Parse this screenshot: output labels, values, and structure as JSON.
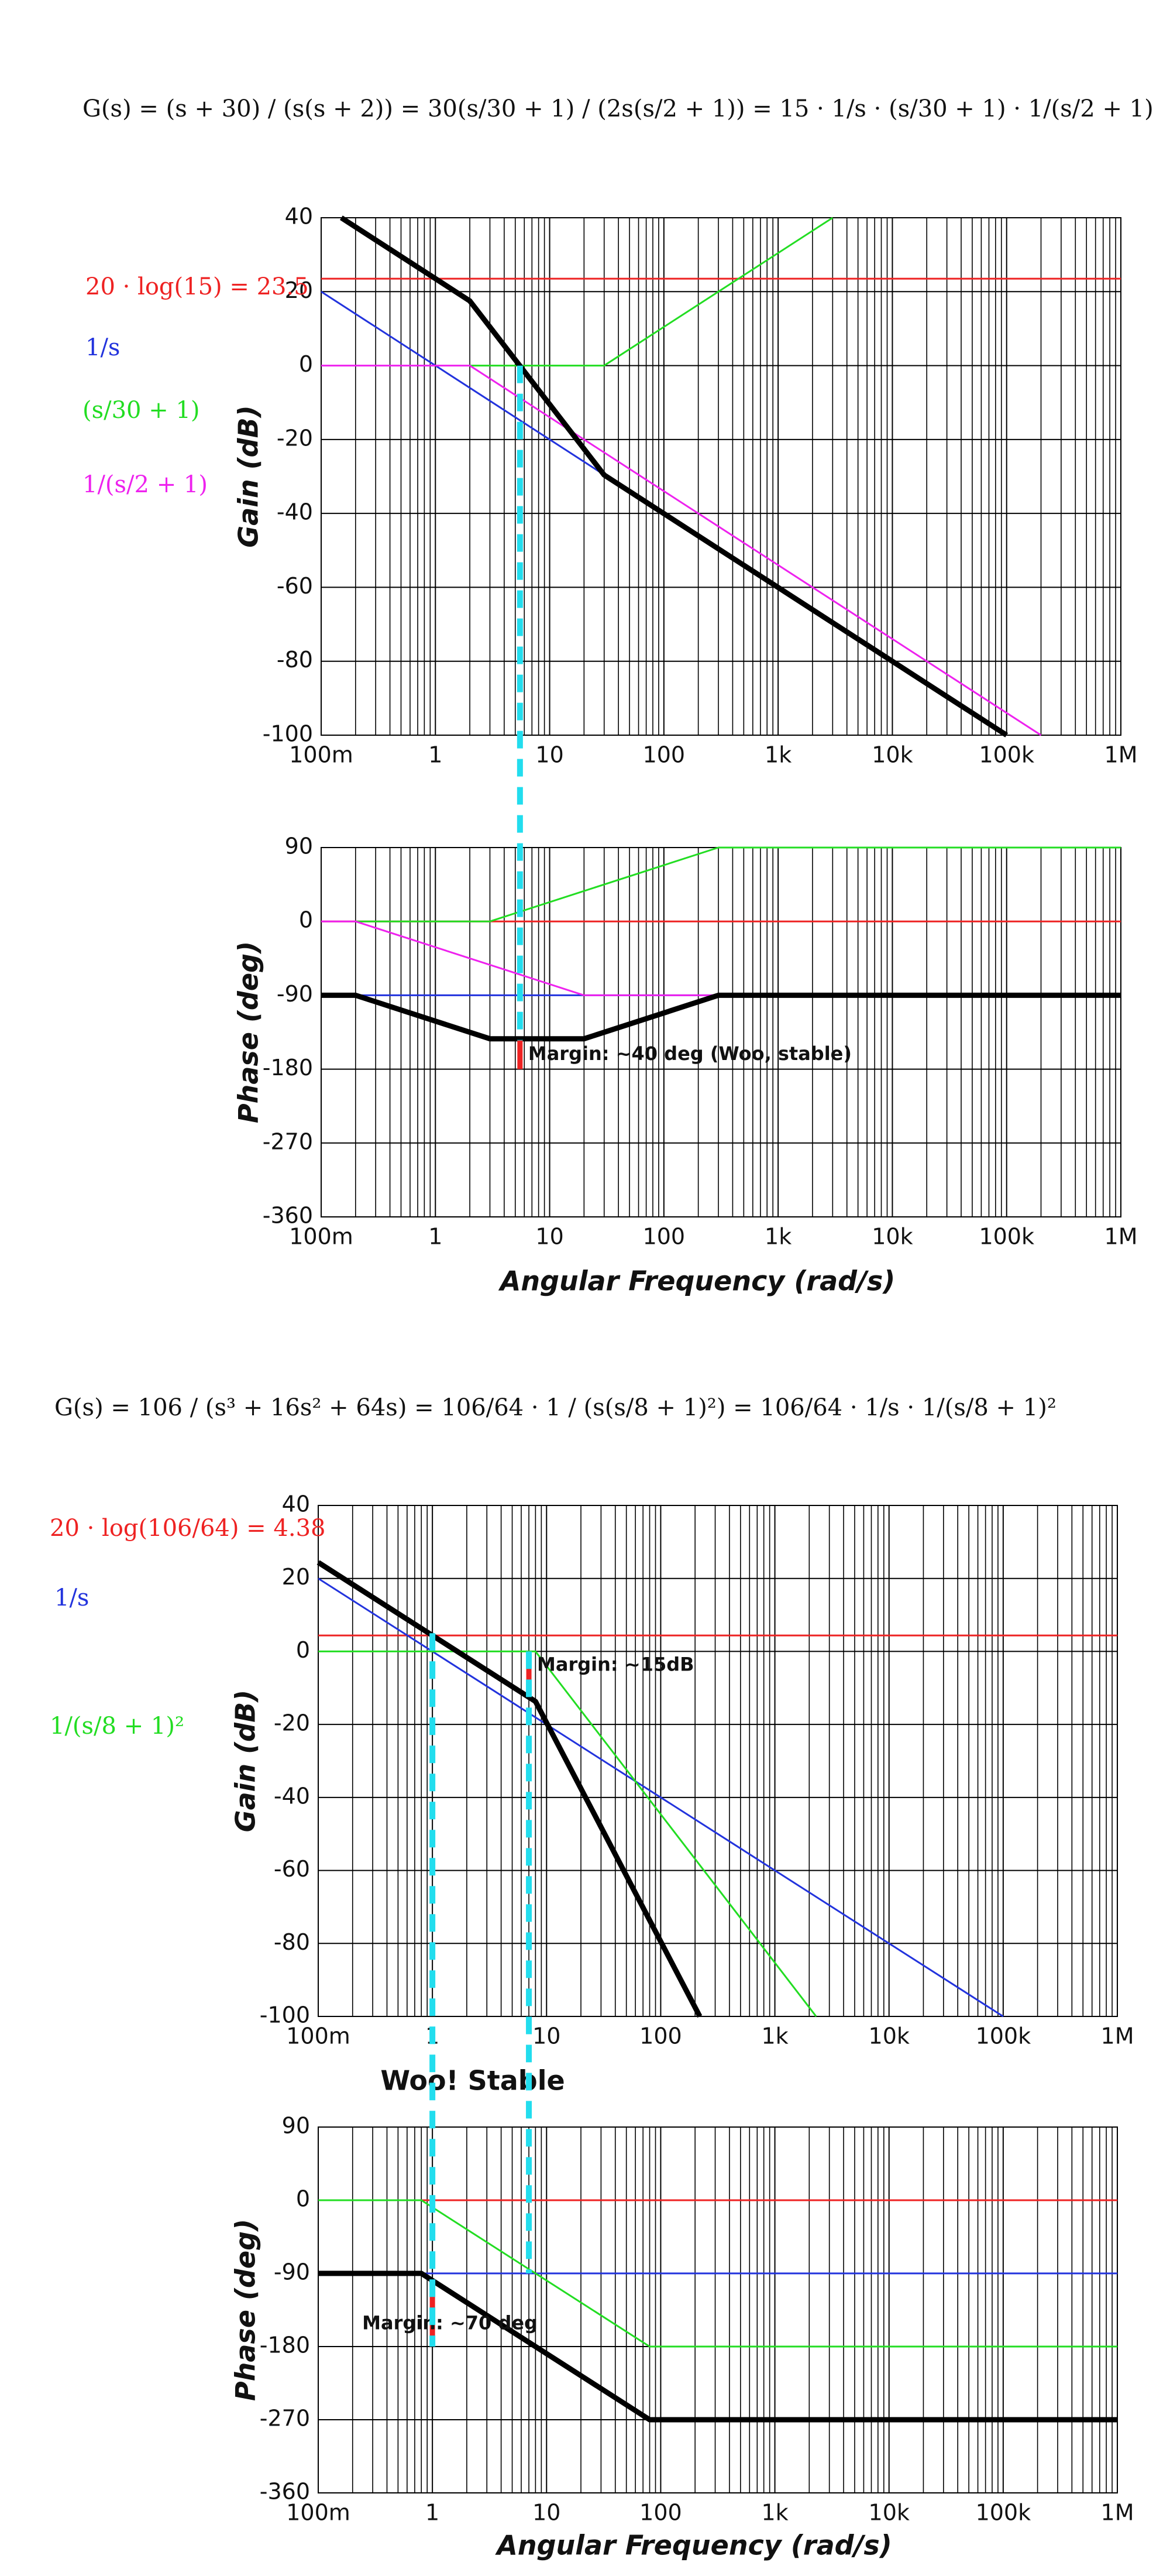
{
  "chart_data": [
    {
      "type": "line",
      "equation": "G(s) = (s + 30) / (s(s + 2)) = 30(s/30 + 1) / (2s(s/2 + 1)) = 15 · 1/s · (s/30 + 1) · 1/(s/2 + 1)",
      "ylabel": "Gain (dB)",
      "xscale": "log",
      "grid": true,
      "xlim": [
        0.1,
        1000000
      ],
      "xticks": [
        {
          "value": 0.1,
          "label": "100m"
        },
        1,
        10,
        100,
        {
          "value": 1000,
          "label": "1k"
        },
        {
          "value": 10000,
          "label": "10k"
        },
        {
          "value": 100000,
          "label": "100k"
        },
        {
          "value": 1000000,
          "label": "1M"
        }
      ],
      "ylim": [
        -100,
        40
      ],
      "yticks": [
        -100,
        -80,
        -60,
        -40,
        -20,
        0,
        20,
        40
      ],
      "series": [
        {
          "name": "20 · log(15) = 23.5",
          "color": "#ee2222",
          "line_width": 3,
          "x": [
            0.1,
            1000000
          ],
          "values": [
            23.5,
            23.5
          ]
        },
        {
          "name": "1/s",
          "color": "#2233dd",
          "line_width": 3,
          "x": [
            0.1,
            100000
          ],
          "values": [
            20,
            -100
          ]
        },
        {
          "name": "(s/30 + 1)",
          "color": "#22dd22",
          "line_width": 3,
          "x": [
            2,
            30,
            3000
          ],
          "values": [
            0,
            0,
            40
          ]
        },
        {
          "name": "1/(s/2 + 1)",
          "color": "#ee22ee",
          "line_width": 3,
          "x": [
            0.1,
            2,
            200000
          ],
          "values": [
            0,
            0,
            -100
          ]
        },
        {
          "color": "#000000",
          "line_width": 9,
          "x": [
            0.15,
            2,
            30,
            100000
          ],
          "values": [
            40,
            17.5,
            -29.6,
            -100
          ]
        }
      ],
      "crossovers": [
        {
          "x": 5.5,
          "gain": 0,
          "phase": -145,
          "color": "#22ddee"
        }
      ]
    },
    {
      "type": "line",
      "ylabel": "Phase (deg)",
      "xlabel": "Angular Frequency (rad/s)",
      "xscale": "log",
      "grid": true,
      "xlim": [
        0.1,
        1000000
      ],
      "xticks": [
        {
          "value": 0.1,
          "label": "100m"
        },
        1,
        10,
        100,
        {
          "value": 1000,
          "label": "1k"
        },
        {
          "value": 10000,
          "label": "10k"
        },
        {
          "value": 100000,
          "label": "100k"
        },
        {
          "value": 1000000,
          "label": "1M"
        }
      ],
      "ylim": [
        -360,
        90
      ],
      "yticks": [
        -360,
        -270,
        -180,
        -90,
        0,
        90
      ],
      "series": [
        {
          "color": "#ee2222",
          "line_width": 3,
          "x": [
            0.1,
            1000000
          ],
          "values": [
            0,
            0
          ]
        },
        {
          "color": "#2233dd",
          "line_width": 3,
          "x": [
            0.1,
            1000000
          ],
          "values": [
            -90,
            -90
          ]
        },
        {
          "color": "#22dd22",
          "line_width": 3,
          "x": [
            0.2,
            3,
            300,
            1000000
          ],
          "values": [
            0,
            0,
            90,
            90
          ]
        },
        {
          "color": "#ee22ee",
          "line_width": 3,
          "x": [
            0.1,
            0.2,
            20,
            1000000
          ],
          "values": [
            0,
            0,
            -90,
            -90
          ]
        },
        {
          "color": "#000000",
          "line_width": 9,
          "x": [
            0.1,
            0.2,
            3,
            20,
            300,
            1000000
          ],
          "values": [
            -90,
            -90,
            -143,
            -143,
            -90,
            -90
          ]
        }
      ],
      "annotations": [
        {
          "text": "Margin: ~40 deg (Woo, stable)",
          "x": 5.5,
          "y": [
            -145,
            -180
          ],
          "color": "#ee2222",
          "label_side": "right"
        }
      ]
    },
    {
      "type": "line",
      "equation": "G(s) = 106 / (s³ + 16s² + 64s) = 106/64 · 1 / (s(s/8 + 1)²) = 106/64 · 1/s · 1/(s/8 + 1)²",
      "ylabel": "Gain (dB)",
      "xscale": "log",
      "grid": true,
      "xlim": [
        0.1,
        1000000
      ],
      "xticks": [
        {
          "value": 0.1,
          "label": "100m"
        },
        1,
        10,
        100,
        {
          "value": 1000,
          "label": "1k"
        },
        {
          "value": 10000,
          "label": "10k"
        },
        {
          "value": 100000,
          "label": "100k"
        },
        {
          "value": 1000000,
          "label": "1M"
        }
      ],
      "ylim": [
        -100,
        40
      ],
      "yticks": [
        -100,
        -80,
        -60,
        -40,
        -20,
        0,
        20,
        40
      ],
      "series": [
        {
          "name": "20 · log(106/64) = 4.38",
          "color": "#ee2222",
          "line_width": 3,
          "x": [
            0.1,
            1000000
          ],
          "values": [
            4.38,
            4.38
          ]
        },
        {
          "name": "1/s",
          "color": "#2233dd",
          "line_width": 3,
          "x": [
            0.1,
            100000
          ],
          "values": [
            20,
            -100
          ]
        },
        {
          "name": "1/(s/8 + 1)²",
          "color": "#22dd22",
          "line_width": 3,
          "x": [
            0.1,
            8,
            2300
          ],
          "values": [
            0,
            0,
            -100
          ]
        },
        {
          "color": "#000000",
          "line_width": 9,
          "x": [
            0.1,
            8,
            220
          ],
          "values": [
            24.4,
            -13.7,
            -100
          ]
        }
      ],
      "annotations": [
        {
          "text": "Margin: ~15dB",
          "x": 7,
          "y": [
            0,
            -12
          ],
          "color": "#ee2222",
          "label_side": "right"
        }
      ],
      "crossovers": [
        {
          "x": 1,
          "gain": 5,
          "phase": -180,
          "color": "#22ddee"
        },
        {
          "x": 7,
          "gain": 0,
          "phase": -90,
          "color": "#22ddee"
        }
      ]
    },
    {
      "type": "line",
      "title": "Woo! Stable",
      "ylabel": "Phase (deg)",
      "xlabel": "Angular Frequency (rad/s)",
      "xscale": "log",
      "grid": true,
      "xlim": [
        0.1,
        1000000
      ],
      "xticks": [
        {
          "value": 0.1,
          "label": "100m"
        },
        1,
        10,
        100,
        {
          "value": 1000,
          "label": "1k"
        },
        {
          "value": 10000,
          "label": "10k"
        },
        {
          "value": 100000,
          "label": "100k"
        },
        {
          "value": 1000000,
          "label": "1M"
        }
      ],
      "ylim": [
        -360,
        90
      ],
      "yticks": [
        -360,
        -270,
        -180,
        -90,
        0,
        90
      ],
      "series": [
        {
          "color": "#ee2222",
          "line_width": 3,
          "x": [
            0.1,
            1000000
          ],
          "values": [
            0,
            0
          ]
        },
        {
          "color": "#2233dd",
          "line_width": 3,
          "x": [
            0.1,
            1000000
          ],
          "values": [
            -90,
            -90
          ]
        },
        {
          "color": "#22dd22",
          "line_width": 3,
          "x": [
            0.1,
            0.8,
            80,
            1000000
          ],
          "values": [
            0,
            0,
            -180,
            -180
          ]
        },
        {
          "color": "#000000",
          "line_width": 9,
          "x": [
            0.1,
            0.8,
            80,
            1000000
          ],
          "values": [
            -90,
            -90,
            -270,
            -270
          ]
        }
      ],
      "annotations": [
        {
          "text": "Margin: ~70 deg",
          "x": 1,
          "y": [
            -110,
            -180
          ],
          "color": "#ee2222",
          "label_side": "left"
        }
      ]
    }
  ]
}
